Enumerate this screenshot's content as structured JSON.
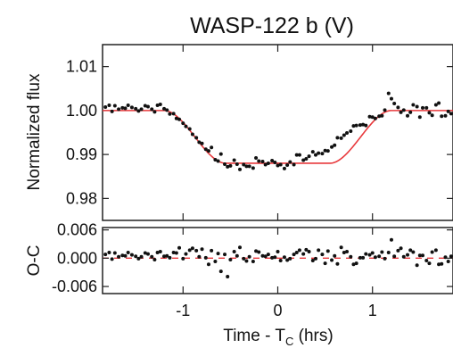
{
  "chart_data": {
    "type": "scatter",
    "title": "WASP-122 b (V)",
    "x_tick_labels": [
      "-1",
      "0",
      "1"
    ],
    "xlabel_prefix": "Time - T",
    "xlabel_subscript": "C",
    "xlabel_suffix": " (hrs)",
    "xlim": [
      -1.85,
      1.85
    ],
    "colors": {
      "points": "#111111",
      "model": "#e8393c"
    },
    "panels": [
      {
        "name": "flux",
        "ylabel": "Normalized flux",
        "ylim": [
          0.975,
          1.015
        ],
        "y_ticks": [
          0.98,
          0.99,
          1.0,
          1.01
        ],
        "y_tick_labels": [
          "0.98",
          "0.99",
          "1.00",
          "1.01"
        ],
        "model": {
          "type": "transit-curve",
          "baseline": 1.0,
          "minimum": 0.988,
          "ingress_start": -1.2,
          "flat_bottom_start": -0.55,
          "flat_bottom_end": 0.55,
          "egress_end": 1.2
        },
        "series": [
          {
            "x": [
              -1.82,
              -1.78,
              -1.75,
              -1.72,
              -1.68,
              -1.64,
              -1.61,
              -1.58,
              -1.54,
              -1.5,
              -1.47,
              -1.44,
              -1.4,
              -1.37,
              -1.33,
              -1.3,
              -1.27,
              -1.24,
              -1.2,
              -1.17,
              -1.14,
              -1.1,
              -1.07,
              -1.04,
              -1.0,
              -0.97,
              -0.93,
              -0.9,
              -0.86,
              -0.83,
              -0.8,
              -0.76,
              -0.73,
              -0.7,
              -0.66,
              -0.63,
              -0.6,
              -0.56,
              -0.53,
              -0.5,
              -0.46,
              -0.43,
              -0.4,
              -0.36,
              -0.33,
              -0.3,
              -0.26,
              -0.23,
              -0.2,
              -0.16,
              -0.13,
              -0.1,
              -0.06,
              -0.03,
              0.0,
              0.03,
              0.07,
              0.1,
              0.13,
              0.17,
              0.2,
              0.23,
              0.27,
              0.3,
              0.33,
              0.37,
              0.4,
              0.43,
              0.47,
              0.5,
              0.53,
              0.57,
              0.6,
              0.63,
              0.67,
              0.7,
              0.73,
              0.77,
              0.8,
              0.83,
              0.87,
              0.9,
              0.93,
              0.97,
              1.0,
              1.03,
              1.07,
              1.1,
              1.13,
              1.17,
              1.2,
              1.23,
              1.27,
              1.3,
              1.33,
              1.37,
              1.4,
              1.43,
              1.47,
              1.5,
              1.53,
              1.57,
              1.6,
              1.63,
              1.67,
              1.7,
              1.73,
              1.77,
              1.8,
              1.83
            ],
            "y": [
              1.0008,
              1.0012,
              0.9998,
              1.0011,
              1.0003,
              1.0006,
              1.0005,
              1.0012,
              1.0007,
              1.0004,
              0.9999,
              1.0003,
              1.0011,
              1.0009,
              1.0003,
              0.9997,
              1.0012,
              1.0014,
              1.0004,
              1.0001,
              0.9992,
              0.9993,
              0.9982,
              0.998,
              0.9971,
              0.9964,
              0.9958,
              0.9946,
              0.9938,
              0.9928,
              0.9925,
              0.9912,
              0.9908,
              0.9916,
              0.9888,
              0.9885,
              0.9901,
              0.9878,
              0.9872,
              0.9874,
              0.9887,
              0.9878,
              0.9866,
              0.9877,
              0.9873,
              0.9873,
              0.9869,
              0.9892,
              0.9885,
              0.9884,
              0.9877,
              0.988,
              0.9886,
              0.9882,
              0.9875,
              0.9877,
              0.9868,
              0.9876,
              0.9883,
              0.9877,
              0.9899,
              0.9899,
              0.9887,
              0.989,
              0.9896,
              0.9906,
              0.9899,
              0.9903,
              0.9902,
              0.9909,
              0.9908,
              0.9917,
              0.9921,
              0.9938,
              0.9937,
              0.9944,
              0.9949,
              0.9953,
              0.9965,
              0.9966,
              0.9967,
              0.9968,
              0.9966,
              0.9986,
              0.9985,
              0.9982,
              0.9987,
              0.9988,
              1.0001,
              1.0039,
              1.0027,
              1.0016,
              1.0007,
              0.9996,
              1.0001,
              0.9988,
              0.9996,
              1.0013,
              1.0009,
              0.9985,
              1.0006,
              1.0006,
              0.9995,
              0.9989,
              1.0013,
              1.0017,
              0.9987,
              0.9988,
              0.9998,
              0.9993
            ]
          }
        ]
      },
      {
        "name": "residuals",
        "ylabel": "O-C",
        "ylim": [
          -0.0075,
          0.0065
        ],
        "y_ticks": [
          -0.006,
          0.0,
          0.006
        ],
        "y_tick_labels": [
          "-0.006",
          "0.000",
          "0.006"
        ],
        "reference_line": 0.0,
        "series": [
          {
            "x": [
              -1.82,
              -1.78,
              -1.75,
              -1.72,
              -1.68,
              -1.64,
              -1.61,
              -1.58,
              -1.54,
              -1.5,
              -1.47,
              -1.44,
              -1.4,
              -1.37,
              -1.33,
              -1.3,
              -1.27,
              -1.24,
              -1.2,
              -1.17,
              -1.14,
              -1.1,
              -1.07,
              -1.04,
              -1.0,
              -0.97,
              -0.93,
              -0.9,
              -0.86,
              -0.83,
              -0.8,
              -0.76,
              -0.73,
              -0.7,
              -0.66,
              -0.63,
              -0.6,
              -0.56,
              -0.53,
              -0.5,
              -0.46,
              -0.43,
              -0.4,
              -0.36,
              -0.33,
              -0.3,
              -0.26,
              -0.23,
              -0.2,
              -0.16,
              -0.13,
              -0.1,
              -0.06,
              -0.03,
              0.0,
              0.03,
              0.07,
              0.1,
              0.13,
              0.17,
              0.2,
              0.23,
              0.27,
              0.3,
              0.33,
              0.37,
              0.4,
              0.43,
              0.47,
              0.5,
              0.53,
              0.57,
              0.6,
              0.63,
              0.67,
              0.7,
              0.73,
              0.77,
              0.8,
              0.83,
              0.87,
              0.9,
              0.93,
              0.97,
              1.0,
              1.03,
              1.07,
              1.1,
              1.13,
              1.17,
              1.2,
              1.23,
              1.27,
              1.3,
              1.33,
              1.37,
              1.4,
              1.43,
              1.47,
              1.5,
              1.53,
              1.57,
              1.6,
              1.63,
              1.67,
              1.7,
              1.73,
              1.77,
              1.8,
              1.83
            ],
            "y": [
              0.0008,
              0.0012,
              -0.0002,
              0.0011,
              0.0003,
              0.0006,
              0.0005,
              0.0012,
              0.0007,
              0.0004,
              -0.0001,
              0.0003,
              0.0011,
              0.0009,
              0.0003,
              -0.0003,
              0.0012,
              0.0014,
              0.0004,
              0.0005,
              0.0001,
              0.0012,
              0.0011,
              0.0022,
              -0.0001,
              0.0009,
              0.0017,
              0.0021,
              0.0016,
              0.0003,
              0.0019,
              0.0001,
              -0.0013,
              0.0016,
              -0.0007,
              0.001,
              -0.0028,
              0.0008,
              -0.0039,
              -0.0003,
              0.0014,
              0.0005,
              0.0023,
              -0.0001,
              -0.0006,
              0.0003,
              -0.0007,
              0.0015,
              0.0013,
              0.0005,
              0.0004,
              0.0008,
              0.0001,
              0.0002,
              0.0014,
              -0.0005,
              0.0002,
              -0.0004,
              -0.0001,
              0.0008,
              0.0012,
              0.0017,
              0.0009,
              0.0018,
              0.0014,
              -0.0005,
              -0.0001,
              0.0017,
              0.0008,
              -0.0011,
              0.0015,
              -0.0004,
              0.0005,
              -0.0012,
              0.0023,
              0.0012,
              0.0014,
              0.0003,
              -0.0013,
              -0.0011,
              0.0001,
              0.0001,
              0.0009,
              0.0007,
              0.0011,
              0.0002,
              0.0004,
              0.0013,
              -0.0001,
              0.0012,
              0.0039,
              0.0004,
              0.0016,
              0.0021,
              0.0003,
              0.0007,
              0.0017,
              0.0013,
              -0.0015,
              0.0006,
              0.0006,
              -0.0005,
              -0.0011,
              0.0013,
              0.0017,
              -0.0013,
              -0.0012,
              0.0002,
              -0.0007,
              0.0004
            ]
          }
        ]
      }
    ]
  }
}
